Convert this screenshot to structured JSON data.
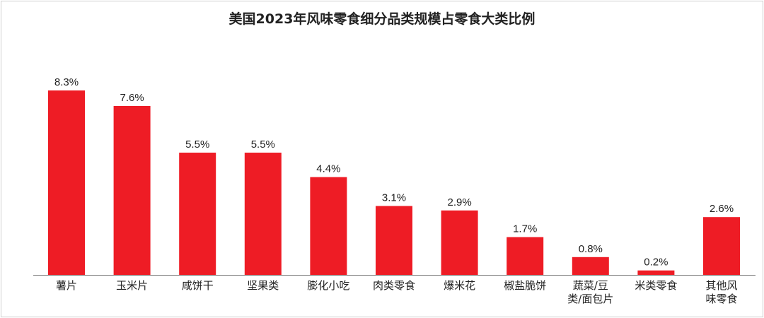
{
  "chart_data": {
    "type": "bar",
    "title": "美国2023年风味零食细分品类规模占零食大类比例",
    "xlabel": "",
    "ylabel": "",
    "ylim": [
      0,
      9.7
    ],
    "grid": false,
    "categories": [
      [
        "薯片"
      ],
      [
        "玉米片"
      ],
      [
        "咸饼干"
      ],
      [
        "坚果类"
      ],
      [
        "膨化小吃"
      ],
      [
        "肉类零食"
      ],
      [
        "爆米花"
      ],
      [
        "椒盐脆饼"
      ],
      [
        "蔬菜/豆",
        "类/面包片"
      ],
      [
        "米类零食"
      ],
      [
        "其他风",
        "味零食"
      ]
    ],
    "values": [
      8.3,
      7.6,
      5.5,
      5.5,
      4.4,
      3.1,
      2.9,
      1.7,
      0.8,
      0.2,
      2.6
    ],
    "data_labels": [
      "8.3%",
      "7.6%",
      "5.5%",
      "5.5%",
      "4.4%",
      "3.1%",
      "2.9%",
      "1.7%",
      "0.8%",
      "0.2%",
      "2.6%"
    ],
    "highlighted_categories": [
      "薯片",
      "玉米片"
    ]
  },
  "colors": {
    "bar": "#ee1c25",
    "highlight_label": "#e8231f",
    "label": "#222222",
    "axis": "#7f7f7f"
  }
}
